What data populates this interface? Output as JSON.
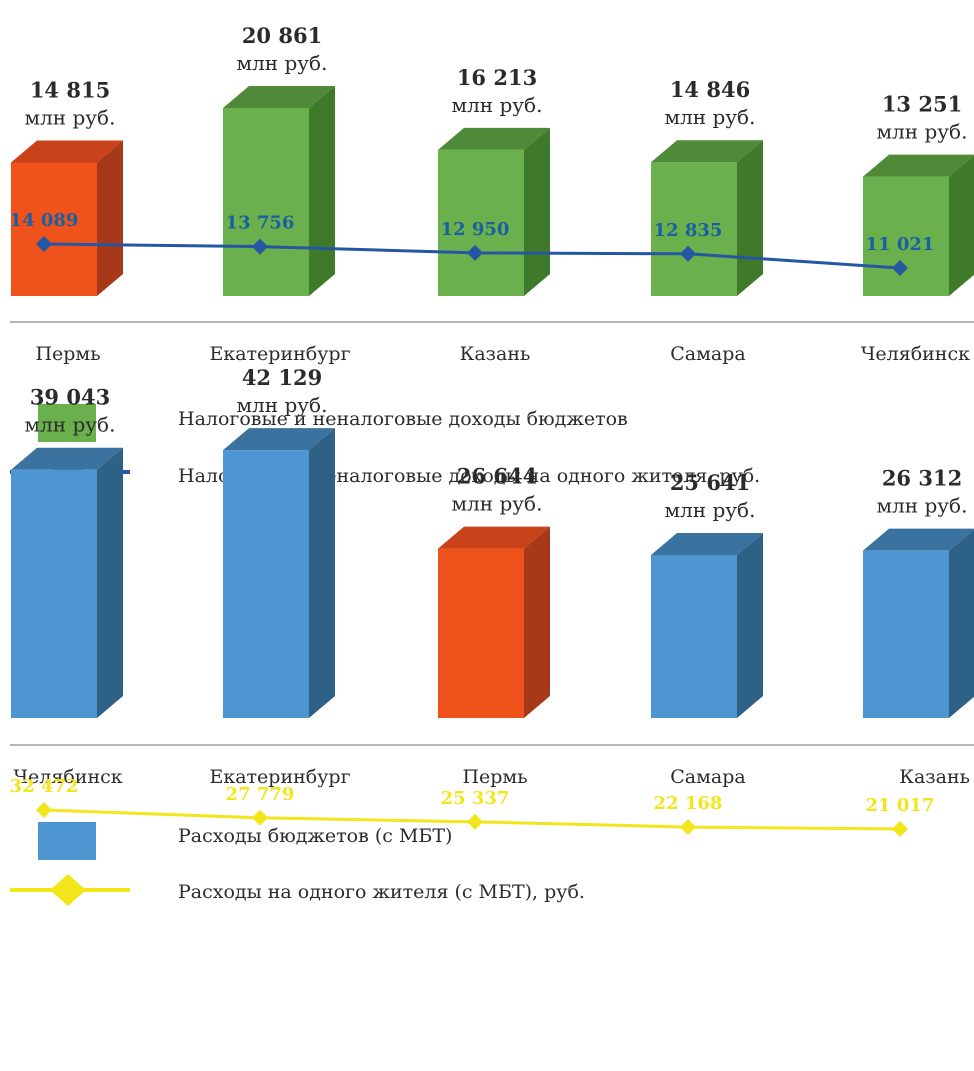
{
  "chart_data": [
    {
      "type": "bar",
      "categories": [
        "Пермь",
        "Екатеринбург",
        "Казань",
        "Самара",
        "Челябинск"
      ],
      "series": [
        {
          "name": "Налоговые и неналоговые доходы бюджетов",
          "type": "bar",
          "values": [
            14815,
            20861,
            16213,
            14846,
            13251
          ],
          "value_labels": [
            "14 815",
            "20 861",
            "16 213",
            "14 846",
            "13 251"
          ],
          "unit_label": "млн руб."
        },
        {
          "name": "Налоговые и неналоговые доходы на одного жителя, руб.",
          "type": "line",
          "values": [
            14089,
            13756,
            12950,
            12835,
            11021
          ],
          "value_labels": [
            "14 089",
            "13 756",
            "12 950",
            "12 835",
            "11 021"
          ]
        }
      ],
      "highlight_category": "Пермь",
      "colors": {
        "bar": "#6ab04c",
        "bar_top": "#4e8a37",
        "bar_side": "#3e7a2a",
        "highlight": "#f0521c",
        "highlight_top": "#c8421a",
        "highlight_side": "#a8381a",
        "line": "#2357a3",
        "point_label": "#1a5fa0"
      }
    },
    {
      "type": "bar",
      "categories": [
        "Челябинск",
        "Екатеринбург",
        "Пермь",
        "Самара",
        "Казань"
      ],
      "series": [
        {
          "name": "Расходы бюджетов (с МБТ)",
          "type": "bar",
          "values": [
            39043,
            42129,
            26644,
            25641,
            26312
          ],
          "value_labels": [
            "39 043",
            "42 129",
            "26 644",
            "25 641",
            "26 312"
          ],
          "unit_label": "млн руб."
        },
        {
          "name": "Расходы на одного жителя (с МБТ), руб.",
          "type": "line",
          "values": [
            32472,
            27779,
            25337,
            22168,
            21017
          ],
          "value_labels": [
            "32 472",
            "27 779",
            "25 337",
            "22 168",
            "21 017"
          ]
        }
      ],
      "highlight_category": "Пермь",
      "colors": {
        "bar": "#4d96d1",
        "bar_top": "#3a72a0",
        "bar_side": "#2e6186",
        "highlight": "#f0521c",
        "highlight_top": "#c8421a",
        "highlight_side": "#a8381a",
        "line": "#f2e51a",
        "point_label": "#f2e51a"
      }
    }
  ]
}
